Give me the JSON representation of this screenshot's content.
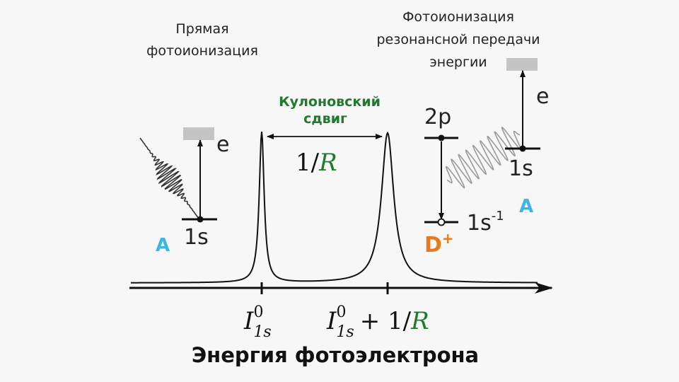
{
  "labels": {
    "direct_line1": "Прямая",
    "direct_line2": "фотоионизация",
    "rpe_line1": "Фотоионизация",
    "rpe_line2": "резонансной передачи",
    "rpe_line3": "энергии",
    "coulomb_line1": "Кулоновский",
    "coulomb_line2": "сдвиг",
    "shift_num": "1/",
    "shift_R": "R",
    "left_e": "e",
    "left_level": "1s",
    "left_atom": "A",
    "right_e": "e",
    "right_level": "1s",
    "right_atom": "A",
    "level_2p": "2p",
    "level_1s_minus_base": "1s",
    "level_1s_minus_sup": "-1",
    "donor_base": "D",
    "donor_sup": "+",
    "tick1_I": "I",
    "tick1_sup": "0",
    "tick1_sub": "1s",
    "tick2_I": "I",
    "tick2_sup": "0",
    "tick2_sub": "1s",
    "tick2_plus": "+ 1/",
    "tick2_R": "R",
    "x_axis_title": "Энергия фотоэлектрона"
  },
  "colors": {
    "green": "#1f7a2e",
    "atom_blue": "#3bb7e0",
    "donor_orange": "#e8791c",
    "line": "#111111",
    "wave_gray": "#9a9a9a",
    "continuum_gray": "#c4c4c4"
  }
}
